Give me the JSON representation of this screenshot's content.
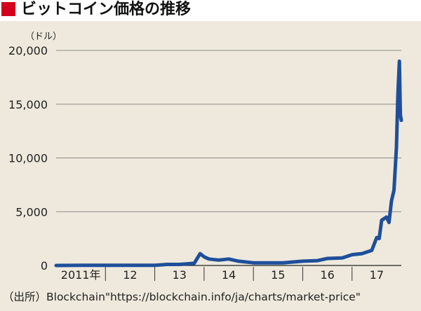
{
  "header": {
    "title": "ビットコイン価格の推移"
  },
  "source": "（出所）Blockchain\"https://blockchain.info/ja/charts/market-price\"",
  "colors": {
    "accent": "#d2001c",
    "line": "#1f4f9a",
    "background": "#efe9dd"
  },
  "chart_data": {
    "type": "line",
    "title": "ビットコイン価格の推移",
    "yunit": "（ドル）",
    "ylim": [
      0,
      20000
    ],
    "yticks": [
      0,
      5000,
      10000,
      15000,
      20000
    ],
    "ytick_labels": [
      "0",
      "5,000",
      "10,000",
      "15,000",
      "20,000"
    ],
    "xlim": [
      2011.0,
      2018.0
    ],
    "xtick_labels": [
      "2011年",
      "12",
      "13",
      "14",
      "15",
      "16",
      "17"
    ],
    "grid": true,
    "series": [
      {
        "x": [
          2011.0,
          2011.5,
          2012.0,
          2012.5,
          2013.0,
          2013.25,
          2013.5,
          2013.8,
          2013.92,
          2014.0,
          2014.1,
          2014.3,
          2014.5,
          2014.7,
          2015.0,
          2015.3,
          2015.6,
          2016.0,
          2016.3,
          2016.5,
          2016.8,
          2017.0,
          2017.2,
          2017.4,
          2017.5,
          2017.55,
          2017.6,
          2017.7,
          2017.75,
          2017.8,
          2017.85,
          2017.9,
          2017.93,
          2017.96,
          2017.98,
          2018.0
        ],
        "y": [
          0,
          10,
          10,
          10,
          20,
          100,
          100,
          200,
          1100,
          800,
          600,
          500,
          600,
          400,
          250,
          250,
          250,
          400,
          450,
          650,
          700,
          1000,
          1100,
          1400,
          2600,
          2500,
          4200,
          4500,
          4000,
          6000,
          7000,
          11000,
          16000,
          19000,
          14000,
          13500
        ]
      }
    ]
  }
}
